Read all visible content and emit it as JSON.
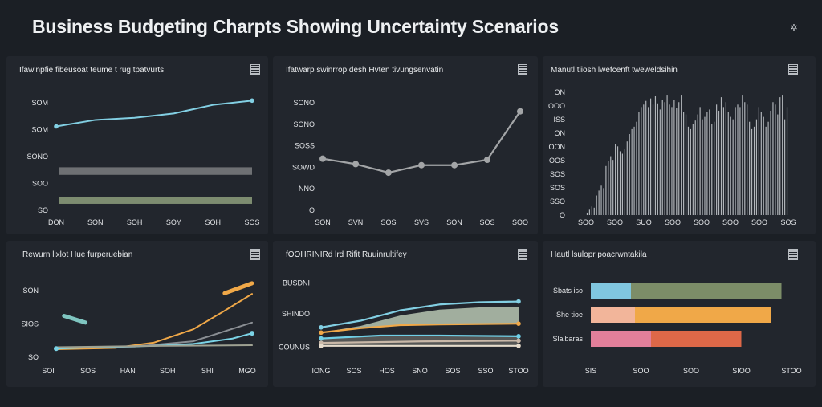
{
  "page": {
    "title": "Business Budgeting Charpts Showing Uncertainty Scenarios",
    "corner_icon": "settings-icon"
  },
  "chart_data": [
    {
      "id": "p1",
      "type": "line",
      "title": "Ifawinpfie fibeusoat teume t rug tpatvurts",
      "y_ticks": [
        "SOM",
        "SOM",
        "SONO",
        "SOO",
        "SO"
      ],
      "x_ticks": [
        "DON",
        "SON",
        "SOH",
        "SOY",
        "SOH",
        "SOS"
      ],
      "ylim": [
        0,
        100
      ],
      "series": [
        {
          "values": [
            [
              0,
              78
            ],
            [
              0.2,
              84
            ],
            [
              0.4,
              86
            ],
            [
              0.6,
              90
            ],
            [
              0.8,
              98
            ],
            [
              1,
              102
            ]
          ],
          "color": "#82cfe3"
        }
      ],
      "bands": [
        {
          "y0": 33,
          "y1": 40,
          "color": "#6e7073"
        },
        {
          "y0": 6,
          "y1": 12,
          "color": "#7d8c70"
        }
      ]
    },
    {
      "id": "p2",
      "type": "line",
      "title": "Ifatwarp swinrrop desh Hvten tivungsenvatin",
      "y_ticks": [
        "SONO",
        "SONO",
        "SOSS",
        "SOWD",
        "NNO",
        "O"
      ],
      "x_ticks": [
        "SON",
        "SVN",
        "SOS",
        "SVS",
        "SON",
        "SOS",
        "SOO"
      ],
      "ylim": [
        0,
        100
      ],
      "series": [
        {
          "values": [
            [
              0,
              48
            ],
            [
              0.167,
              43
            ],
            [
              0.333,
              35
            ],
            [
              0.5,
              42
            ],
            [
              0.667,
              42
            ],
            [
              0.833,
              47
            ],
            [
              1,
              92
            ]
          ],
          "color": "#a3a5a7"
        }
      ]
    },
    {
      "id": "p3",
      "type": "bar",
      "title": "Manutl tiiosh lwefcenft tweweldsihin",
      "y_ticks": [
        "ON",
        "OOO",
        "ISS",
        "ON",
        "OON",
        "OOS",
        "SOS",
        "SOS",
        "SSO",
        "O"
      ],
      "x_ticks": [
        "SOO",
        "SOO",
        "SUO",
        "SOO",
        "SOO",
        "SOO",
        "SOO",
        "SOS"
      ],
      "ylim": [
        0,
        100
      ],
      "values": [
        2,
        5,
        7,
        6,
        16,
        20,
        24,
        22,
        40,
        44,
        48,
        45,
        58,
        56,
        52,
        50,
        54,
        60,
        66,
        70,
        72,
        76,
        84,
        88,
        90,
        93,
        88,
        95,
        90,
        97,
        91,
        86,
        94,
        92,
        98,
        90,
        88,
        94,
        87,
        92,
        98,
        84,
        82,
        72,
        70,
        74,
        77,
        82,
        88,
        78,
        80,
        84,
        86,
        74,
        76,
        90,
        85,
        96,
        88,
        92,
        84,
        80,
        78,
        88,
        90,
        88,
        98,
        92,
        90,
        76,
        70,
        72,
        78,
        88,
        84,
        80,
        72,
        76,
        85,
        92,
        90,
        82,
        96,
        98,
        78,
        88
      ],
      "color": "#b2b6bb"
    },
    {
      "id": "p4",
      "type": "line",
      "title": "Rewurn lixlot Hue furperuebian",
      "y_ticks": [
        "SON",
        "SIOS",
        "SO"
      ],
      "x_ticks": [
        "SOI",
        "SOS",
        "HAN",
        "SOH",
        "SHI",
        "MGO"
      ],
      "ylim": [
        0,
        100
      ],
      "series": [
        {
          "values": [
            [
              0,
              12
            ],
            [
              0.3,
              14
            ],
            [
              0.5,
              22
            ],
            [
              0.7,
              42
            ],
            [
              0.85,
              68
            ],
            [
              1,
              95
            ]
          ],
          "color": "#f0a848"
        },
        {
          "values": [
            [
              0,
              14
            ],
            [
              0.4,
              16
            ],
            [
              0.7,
              24
            ],
            [
              1,
              52
            ]
          ],
          "color": "#8a8e93"
        },
        {
          "values": [
            [
              0,
              13
            ],
            [
              0.2,
              15
            ],
            [
              0.5,
              17
            ],
            [
              0.7,
              20
            ],
            [
              0.9,
              28
            ],
            [
              1,
              36
            ]
          ],
          "color": "#7bd3e6"
        },
        {
          "values": [
            [
              0,
              15
            ],
            [
              0.5,
              17
            ],
            [
              1,
              18
            ]
          ],
          "color": "#9ea192"
        }
      ],
      "segments": [
        {
          "from": [
            0.86,
            96
          ],
          "to": [
            1,
            111
          ],
          "color": "#f0a848"
        },
        {
          "from": [
            0.04,
            62
          ],
          "to": [
            0.15,
            52
          ],
          "color": "#7fc5c0"
        }
      ]
    },
    {
      "id": "p5",
      "type": "area",
      "title": "fOOHRINIRd lrd Rifit Ruuinrultifey",
      "y_ticks": [
        "BUSDNI",
        "SHINDO",
        "COUNUS"
      ],
      "x_ticks": [
        "IONG",
        "SOS",
        "HOS",
        "SNO",
        "SOS",
        "SSO",
        "STOO"
      ],
      "ylim": [
        0,
        100
      ],
      "series": [
        {
          "values": [
            [
              0,
              35
            ],
            [
              0.2,
              44
            ],
            [
              0.4,
              58
            ],
            [
              0.6,
              66
            ],
            [
              0.8,
              69
            ],
            [
              1,
              70
            ]
          ],
          "color": "#82cfe3"
        },
        {
          "values": [
            [
              0,
              28
            ],
            [
              0.2,
              34
            ],
            [
              0.4,
              38
            ],
            [
              0.6,
              39
            ],
            [
              1,
              40
            ]
          ],
          "color": "#f0a848"
        },
        {
          "values": [
            [
              0,
              20
            ],
            [
              0.3,
              24
            ],
            [
              0.6,
              24
            ],
            [
              1,
              23
            ]
          ],
          "color": "#6fcfe6"
        },
        {
          "values": [
            [
              0,
              14
            ],
            [
              0.5,
              16
            ],
            [
              1,
              17
            ]
          ],
          "color": "#c9b8a8"
        },
        {
          "values": [
            [
              0,
              10
            ],
            [
              0.5,
              10
            ],
            [
              1,
              10
            ]
          ],
          "color": "#e6dccc"
        }
      ],
      "area_color": "#b7c7b3"
    },
    {
      "id": "p6",
      "type": "bar",
      "orientation": "horizontal",
      "title": "Hautl lsulopr poacrwntakila",
      "categories": [
        "Sbats iso",
        "She tioe",
        "Slaibaras"
      ],
      "x_ticks": [
        "SIS",
        "SOO",
        "SOO",
        "SIOO",
        "STOO"
      ],
      "xlim": [
        0,
        100
      ],
      "bars": [
        {
          "segments": [
            {
              "value": 20,
              "color": "#80c6df"
            },
            {
              "value": 75,
              "color": "#7c8d68"
            }
          ]
        },
        {
          "segments": [
            {
              "value": 22,
              "color": "#f2b59a"
            },
            {
              "value": 68,
              "color": "#f0a848"
            }
          ]
        },
        {
          "segments": [
            {
              "value": 30,
              "color": "#e27f9a"
            },
            {
              "value": 45,
              "color": "#de6848"
            }
          ]
        }
      ]
    }
  ]
}
